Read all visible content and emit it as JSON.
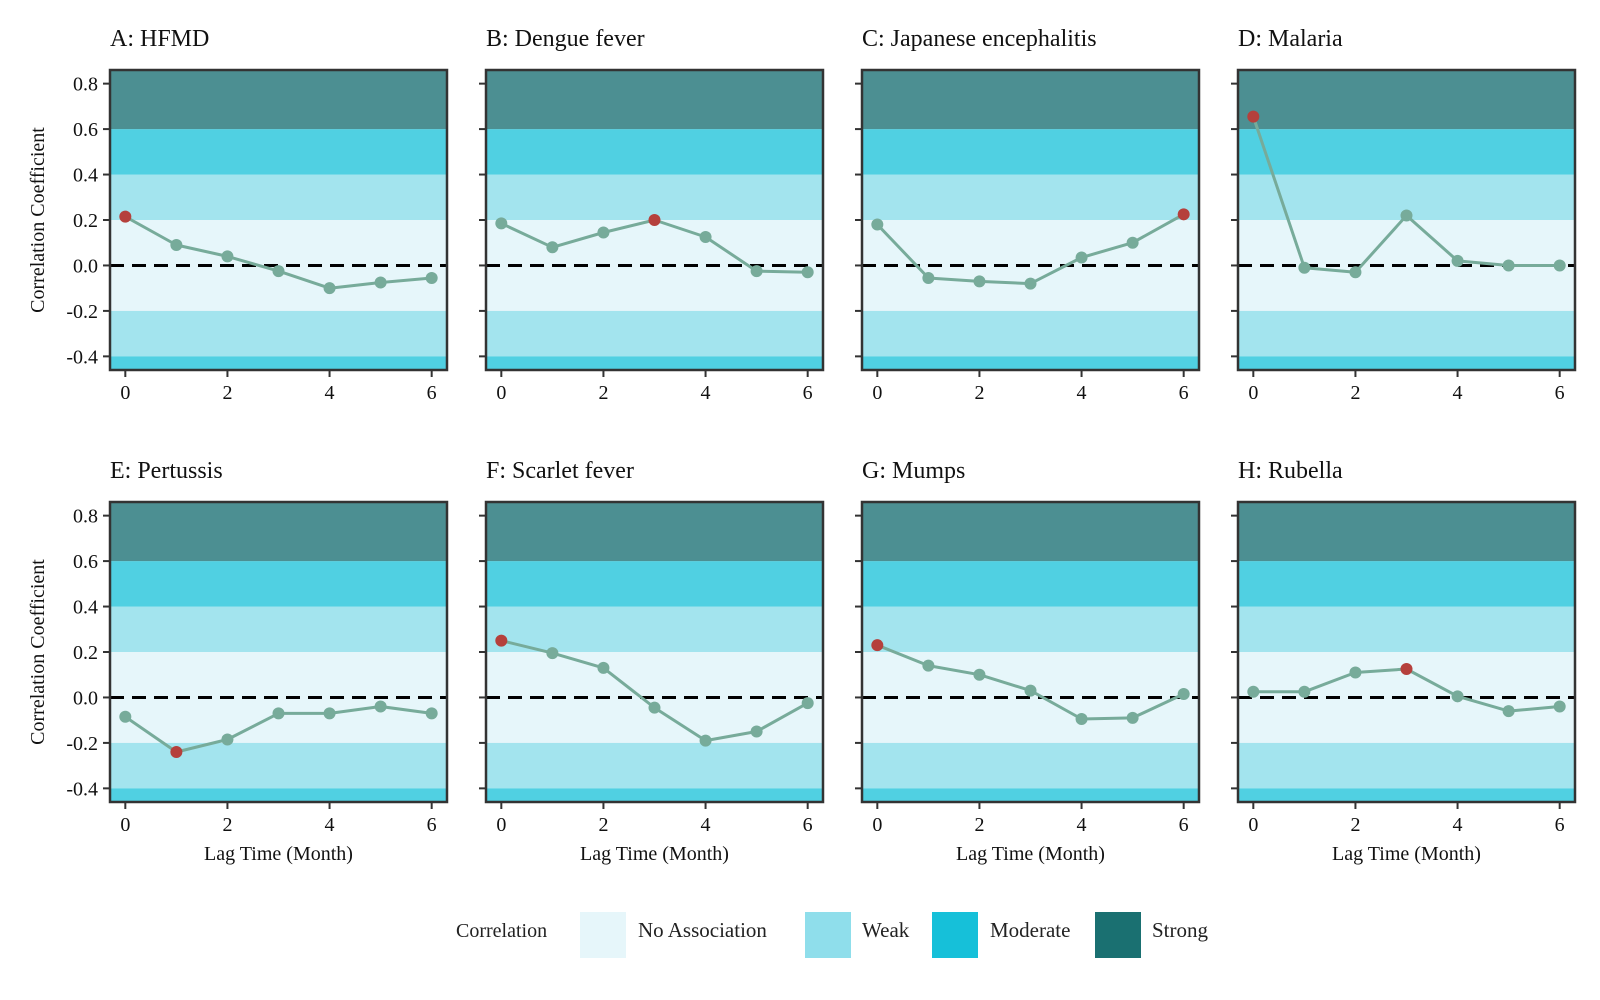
{
  "chart_data": [
    {
      "type": "line",
      "title": "A: HFMD",
      "x": [
        0,
        1,
        2,
        3,
        4,
        5,
        6
      ],
      "y": [
        0.215,
        0.09,
        0.04,
        -0.025,
        -0.1,
        -0.075,
        -0.055
      ],
      "highlight_index": 0,
      "xlabel": "",
      "ylabel": "Correlation Coefficient",
      "xlim": [
        -0.3,
        6.3
      ],
      "ylim": [
        -0.46,
        0.86
      ],
      "xticks": [
        "0",
        "2",
        "4",
        "6"
      ],
      "yticks": [
        "0.8",
        "0.6",
        "0.4",
        "0.2",
        "0.0",
        "-0.2",
        "-0.4"
      ]
    },
    {
      "type": "line",
      "title": "B: Dengue fever",
      "x": [
        0,
        1,
        2,
        3,
        4,
        5,
        6
      ],
      "y": [
        0.185,
        0.08,
        0.145,
        0.2,
        0.125,
        -0.025,
        -0.03
      ],
      "highlight_index": 3,
      "xlabel": "",
      "ylabel": "",
      "xlim": [
        -0.3,
        6.3
      ],
      "ylim": [
        -0.46,
        0.86
      ],
      "xticks": [
        "0",
        "2",
        "4",
        "6"
      ],
      "yticks": []
    },
    {
      "type": "line",
      "title": "C: Japanese encephalitis",
      "x": [
        0,
        1,
        2,
        3,
        4,
        5,
        6
      ],
      "y": [
        0.18,
        -0.055,
        -0.07,
        -0.08,
        0.035,
        0.1,
        0.225
      ],
      "highlight_index": 6,
      "xlabel": "",
      "ylabel": "",
      "xlim": [
        -0.3,
        6.3
      ],
      "ylim": [
        -0.46,
        0.86
      ],
      "xticks": [
        "0",
        "2",
        "4",
        "6"
      ],
      "yticks": []
    },
    {
      "type": "line",
      "title": "D: Malaria",
      "x": [
        0,
        1,
        2,
        3,
        4,
        5,
        6
      ],
      "y": [
        0.655,
        -0.01,
        -0.03,
        0.22,
        0.02,
        0.0,
        0.0
      ],
      "highlight_index": 0,
      "xlabel": "",
      "ylabel": "",
      "xlim": [
        -0.3,
        6.3
      ],
      "ylim": [
        -0.46,
        0.86
      ],
      "xticks": [
        "0",
        "2",
        "4",
        "6"
      ],
      "yticks": []
    },
    {
      "type": "line",
      "title": "E: Pertussis",
      "x": [
        0,
        1,
        2,
        3,
        4,
        5,
        6
      ],
      "y": [
        -0.085,
        -0.24,
        -0.185,
        -0.07,
        -0.07,
        -0.04,
        -0.07
      ],
      "highlight_index": 1,
      "xlabel": "Lag Time (Month)",
      "ylabel": "Correlation Coefficient",
      "xlim": [
        -0.3,
        6.3
      ],
      "ylim": [
        -0.46,
        0.86
      ],
      "xticks": [
        "0",
        "2",
        "4",
        "6"
      ],
      "yticks": [
        "0.8",
        "0.6",
        "0.4",
        "0.2",
        "0.0",
        "-0.2",
        "-0.4"
      ]
    },
    {
      "type": "line",
      "title": "F: Scarlet fever",
      "x": [
        0,
        1,
        2,
        3,
        4,
        5,
        6
      ],
      "y": [
        0.25,
        0.195,
        0.13,
        -0.045,
        -0.19,
        -0.15,
        -0.025
      ],
      "highlight_index": 0,
      "xlabel": "Lag Time (Month)",
      "ylabel": "",
      "xlim": [
        -0.3,
        6.3
      ],
      "ylim": [
        -0.46,
        0.86
      ],
      "xticks": [
        "0",
        "2",
        "4",
        "6"
      ],
      "yticks": []
    },
    {
      "type": "line",
      "title": "G: Mumps",
      "x": [
        0,
        1,
        2,
        3,
        4,
        5,
        6
      ],
      "y": [
        0.23,
        0.14,
        0.1,
        0.03,
        -0.095,
        -0.09,
        0.015
      ],
      "highlight_index": 0,
      "xlabel": "Lag Time (Month)",
      "ylabel": "",
      "xlim": [
        -0.3,
        6.3
      ],
      "ylim": [
        -0.46,
        0.86
      ],
      "xticks": [
        "0",
        "2",
        "4",
        "6"
      ],
      "yticks": []
    },
    {
      "type": "line",
      "title": "H: Rubella",
      "x": [
        0,
        1,
        2,
        3,
        4,
        5,
        6
      ],
      "y": [
        0.025,
        0.025,
        0.11,
        0.125,
        0.005,
        -0.06,
        -0.04
      ],
      "highlight_index": 3,
      "xlabel": "Lag Time (Month)",
      "ylabel": "",
      "xlim": [
        -0.3,
        6.3
      ],
      "ylim": [
        -0.46,
        0.86
      ],
      "xticks": [
        "0",
        "2",
        "4",
        "6"
      ],
      "yticks": []
    }
  ],
  "bands": [
    {
      "from": -0.2,
      "to": 0.2,
      "color": "#e6f6fa"
    },
    {
      "from": 0.2,
      "to": 0.4,
      "color": "#a3e4ee"
    },
    {
      "from": -0.4,
      "to": -0.2,
      "color": "#a3e4ee"
    },
    {
      "from": 0.4,
      "to": 0.6,
      "color": "#50d0e2"
    },
    {
      "from": -0.6,
      "to": -0.4,
      "color": "#50d0e2"
    },
    {
      "from": 0.6,
      "to": 1.0,
      "color": "#4c8f92"
    }
  ],
  "legend": {
    "title": "Correlation",
    "placement": "bottom",
    "items": [
      {
        "label": "No Association",
        "color": "#e6f6fa"
      },
      {
        "label": "Weak",
        "color": "#8fdeeb"
      },
      {
        "label": "Moderate",
        "color": "#16c0d9"
      },
      {
        "label": "Strong",
        "color": "#1a7071"
      }
    ]
  },
  "colors": {
    "line": "#77ab9a",
    "point": "#77ab9a",
    "highlight": "#b5403c",
    "zero_line": "#000000",
    "frame": "#333333"
  }
}
